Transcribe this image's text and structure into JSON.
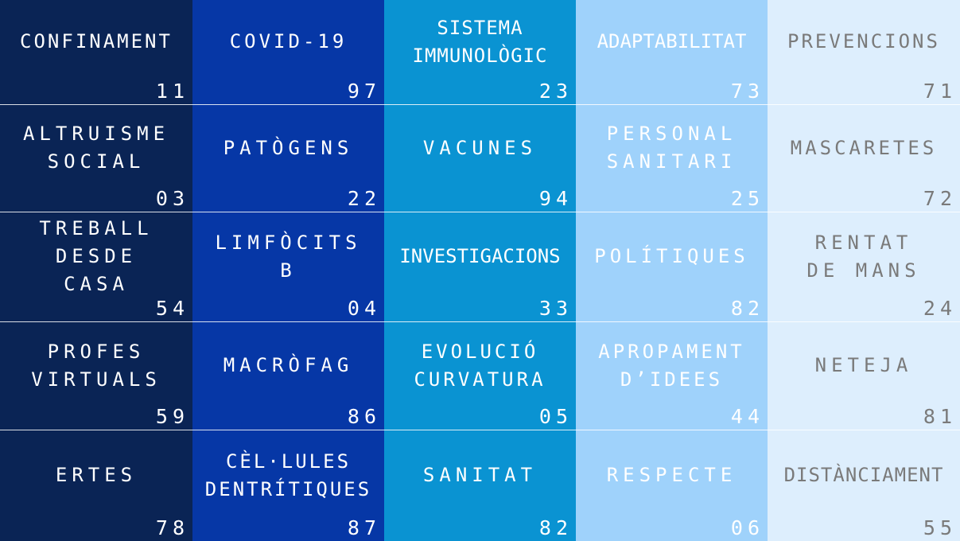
{
  "column_colors": [
    "#0a2455",
    "#0637a6",
    "#0a93d2",
    "#9fd2fb",
    "#ddeefd"
  ],
  "rows": [
    [
      {
        "label": "CONFINAMENT",
        "value": "11"
      },
      {
        "label": "COVID-19",
        "value": "97"
      },
      {
        "label": "SISTEMA\nIMMUNOLÒGIC",
        "value": "23"
      },
      {
        "label": "ADAPTABILITAT",
        "value": "73"
      },
      {
        "label": "PREVENCIONS",
        "value": "71"
      }
    ],
    [
      {
        "label": "ALTRUISME\nSOCIAL",
        "value": "03"
      },
      {
        "label": "PATÒGENS",
        "value": "22"
      },
      {
        "label": "VACUNES",
        "value": "94"
      },
      {
        "label": "PERSONAL\nSANITARI",
        "value": "25"
      },
      {
        "label": "MASCARETES",
        "value": "72"
      }
    ],
    [
      {
        "label": "TREBALL\nDESDE\nCASA",
        "value": "54"
      },
      {
        "label": "LIMFÒCITS\nB",
        "value": "04"
      },
      {
        "label": "INVESTIGACIONS",
        "value": "33"
      },
      {
        "label": "POLÍTIQUES",
        "value": "82"
      },
      {
        "label": "RENTAT\nDE MANS",
        "value": "24"
      }
    ],
    [
      {
        "label": "PROFES\nVIRTUALS",
        "value": "59"
      },
      {
        "label": "MACRÒFAG",
        "value": "86"
      },
      {
        "label": "EVOLUCIÓ\nCURVATURA",
        "value": "05"
      },
      {
        "label": "APROPAMENT\nD’IDEES",
        "value": "44"
      },
      {
        "label": "NETEJA",
        "value": "81"
      }
    ],
    [
      {
        "label": "ERTES",
        "value": "78"
      },
      {
        "label": "CÈL·LULES\nDENTRÍTIQUES",
        "value": "87"
      },
      {
        "label": "SANITAT",
        "value": "82"
      },
      {
        "label": "RESPECTE",
        "value": "06"
      },
      {
        "label": "DISTÀNCIAMENT",
        "value": "55"
      }
    ]
  ]
}
